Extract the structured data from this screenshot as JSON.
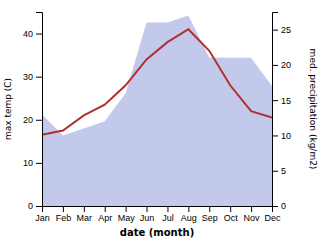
{
  "chart_data": {
    "type": "line",
    "x_label": "date (month)",
    "y_label": "max temp (C)",
    "y2_label": "med. precipitation (kg/m2)",
    "categories": [
      "Jan",
      "Feb",
      "Mar",
      "Apr",
      "May",
      "Jun",
      "Jul",
      "Aug",
      "Sep",
      "Oct",
      "Nov",
      "Dec"
    ],
    "series": [
      {
        "type": "area",
        "axis": "y2",
        "color": "#b8bfe8",
        "values": [
          13,
          10,
          11,
          12,
          16,
          26,
          26,
          27,
          21,
          21,
          21,
          17
        ]
      },
      {
        "type": "line",
        "color": "#b03030",
        "values": [
          16.5,
          17.5,
          21,
          23.5,
          28,
          34,
          38,
          41,
          36,
          28,
          22,
          20.5
        ]
      }
    ],
    "ylim": [
      0,
      45
    ],
    "yticks": [
      0,
      10,
      20,
      30,
      40
    ],
    "y2lim": [
      0,
      27.5
    ],
    "y2ticks": [
      0,
      5,
      10,
      15,
      20,
      25
    ]
  }
}
